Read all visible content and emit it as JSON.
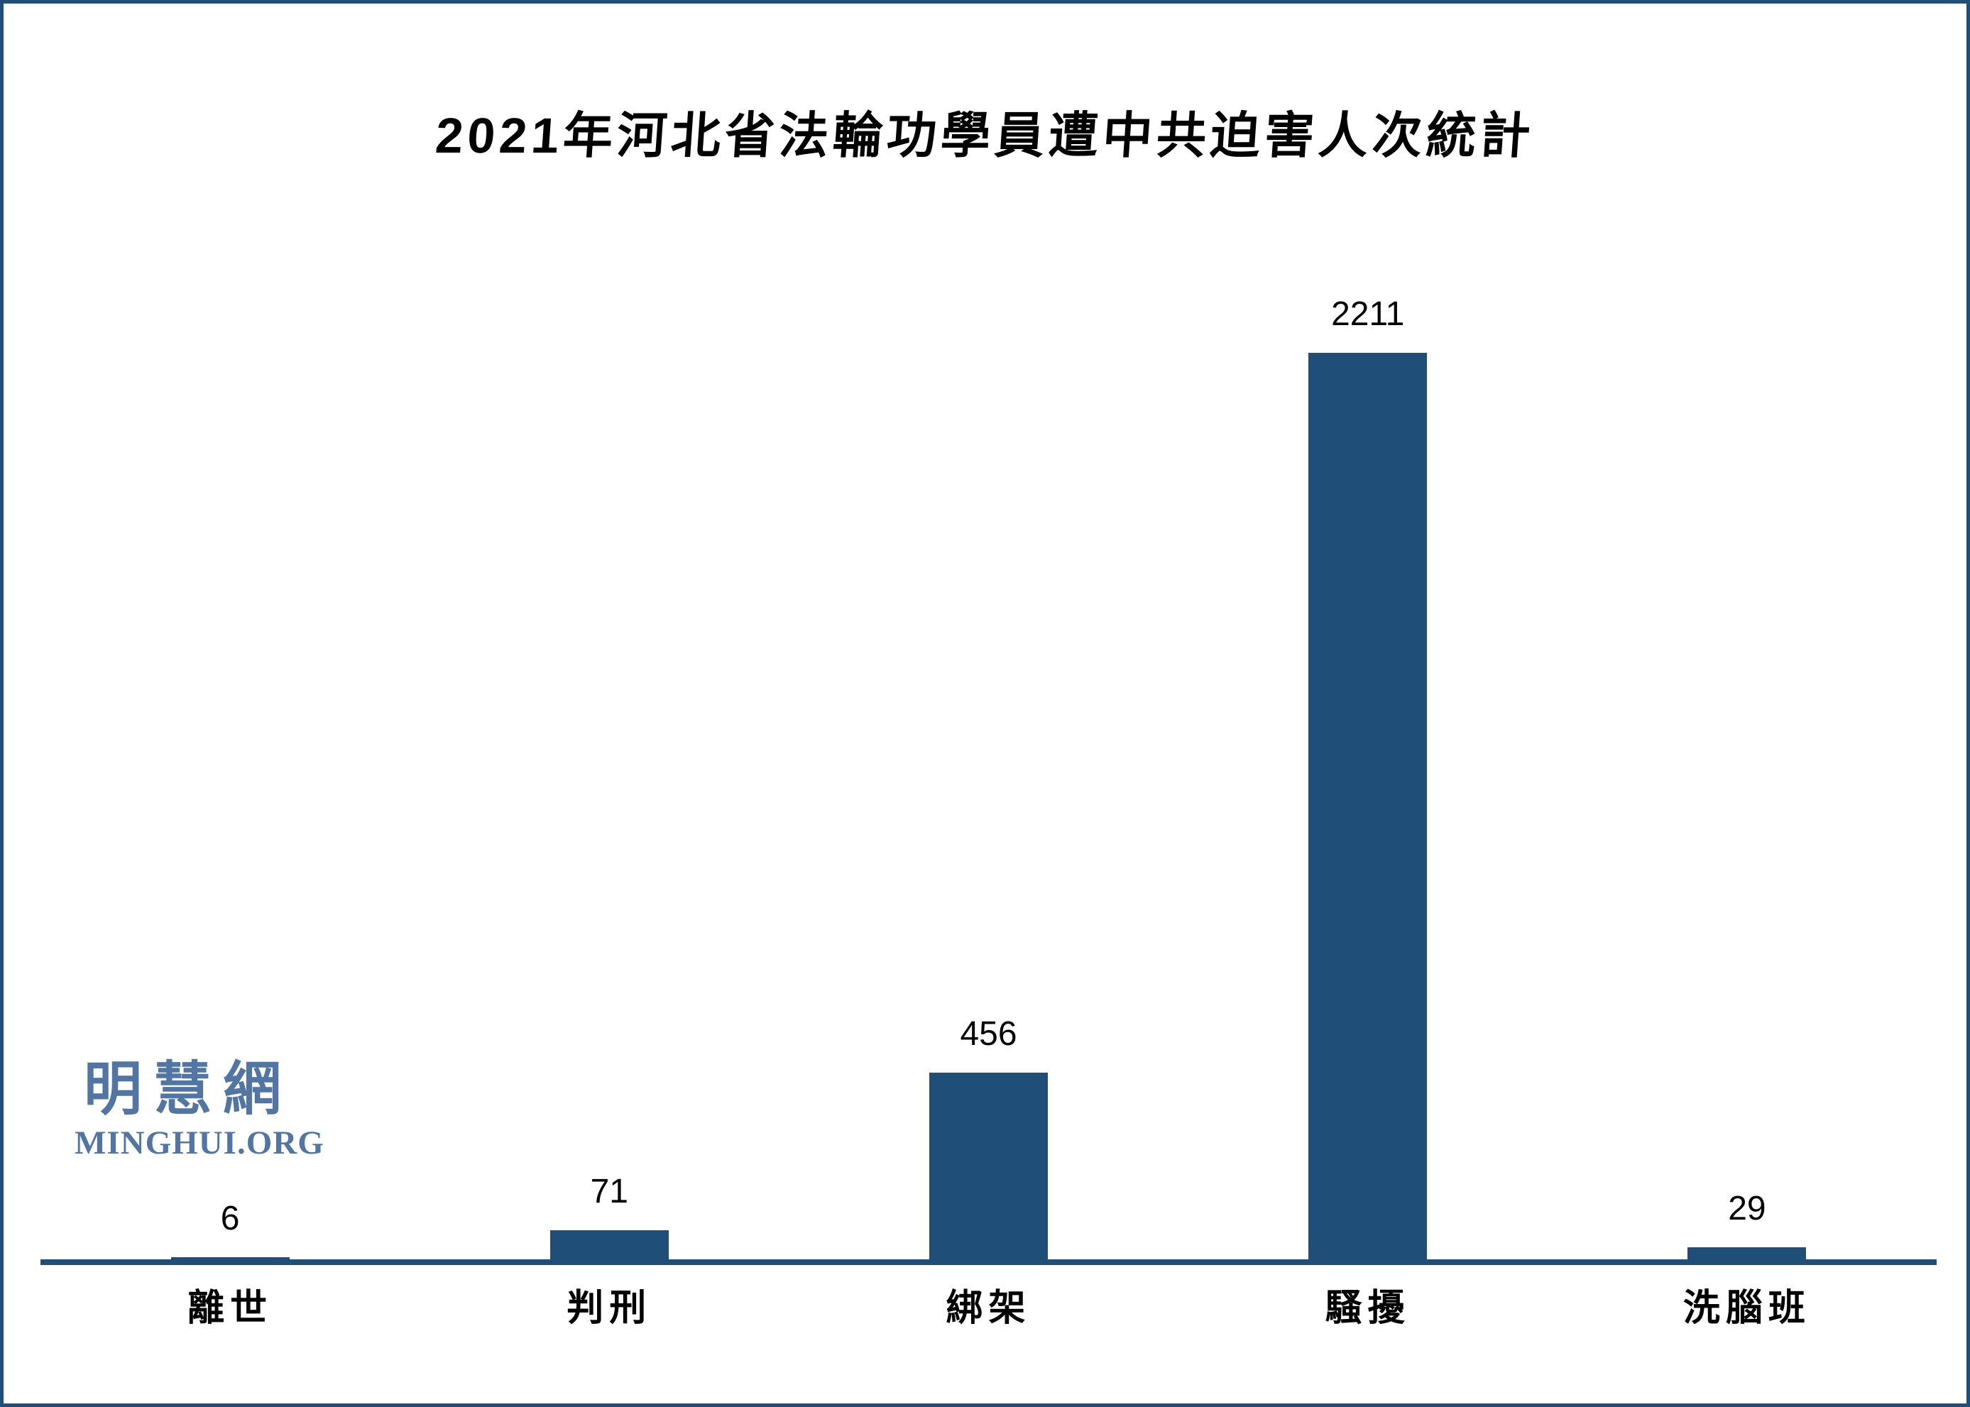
{
  "page": {
    "title": "2021年河北省法輪功學員遭中共迫害人次統計"
  },
  "chart_data": {
    "type": "bar",
    "title": "2021年河北省法輪功學員遭中共迫害人次統計",
    "categories": [
      "離世",
      "判刑",
      "綁架",
      "騷擾",
      "洗腦班"
    ],
    "values": [
      6,
      71,
      456,
      2211,
      29
    ],
    "value_labels": [
      "6",
      "71",
      "456",
      "2211",
      "29"
    ],
    "xlabel": "",
    "ylabel": "",
    "ylim": [
      0,
      2211
    ],
    "grid": false,
    "legend_position": "none",
    "bar_color": "#1F4E79",
    "axis_color": "#1F4E79",
    "label_color": "#000000"
  },
  "branding": {
    "logo_cjk": "明慧網",
    "logo_latin": "MINGHUI.ORG",
    "logo_color": "#5276A4"
  },
  "frame": {
    "border_color": "#1F4E79",
    "background": "#ffffff"
  }
}
